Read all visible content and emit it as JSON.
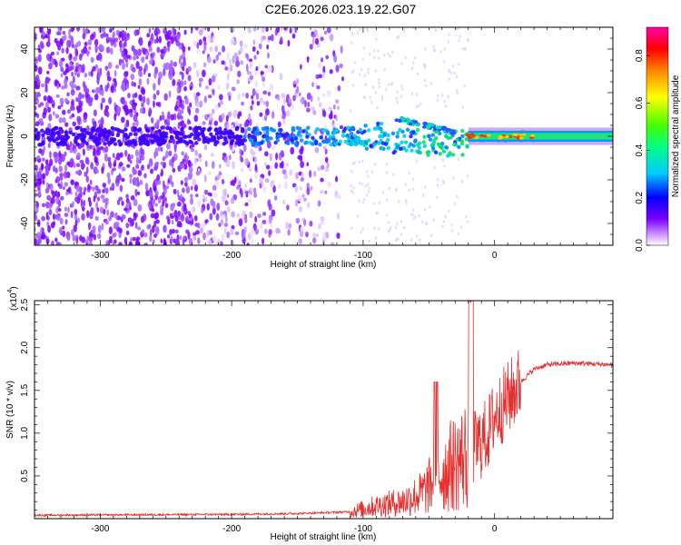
{
  "title": "C2E6.2026.023.19.22.G07",
  "colors": {
    "snr_line": "#e53030",
    "spectrogram_low": "#8a2be2"
  },
  "chart_data": [
    {
      "type": "heatmap",
      "xlabel": "Height of straight line (km)",
      "ylabel": "Frequency (Hz)",
      "xlim": [
        -350,
        90
      ],
      "ylim": [
        -50,
        50
      ],
      "x_ticks": [
        -300,
        -200,
        -100,
        0
      ],
      "y_ticks": [
        -40,
        -20,
        0,
        20,
        40
      ],
      "colorbar": {
        "label": "Normalized spectral amplitude",
        "range": [
          0,
          0.92
        ],
        "ticks": [
          "0.0",
          "0.2",
          "0.4",
          "0.6",
          "0.8"
        ],
        "tick_values": [
          0,
          0.2,
          0.4,
          0.6,
          0.8
        ]
      },
      "grid": false
    },
    {
      "type": "line",
      "xlabel": "Height of straight line (km)",
      "ylabel": "SNR (10 * v/v)",
      "y_multiplier": "(x10",
      "y_multiplier_exp": "4",
      "y_multiplier_close": ")",
      "xlim": [
        -350,
        90
      ],
      "ylim": [
        0,
        2.55
      ],
      "x_ticks": [
        -300,
        -200,
        -100,
        0
      ],
      "y_ticks": [
        "0.5",
        "1.0",
        "1.5",
        "2.0",
        "2.5"
      ],
      "y_tick_values": [
        0.5,
        1.0,
        1.5,
        2.0,
        2.5
      ],
      "series_profile": {
        "x": [
          -350,
          -200,
          -150,
          -110,
          -90,
          -70,
          -55,
          -45,
          -35,
          -25,
          -18,
          -10,
          -5,
          0,
          5,
          10,
          20,
          30,
          40,
          60,
          90
        ],
        "y": [
          0.04,
          0.05,
          0.06,
          0.08,
          0.15,
          0.2,
          0.3,
          0.45,
          0.6,
          0.7,
          0.8,
          0.9,
          1.0,
          1.2,
          1.3,
          1.4,
          1.6,
          1.75,
          1.8,
          1.82,
          1.8
        ]
      },
      "grid": false
    }
  ]
}
